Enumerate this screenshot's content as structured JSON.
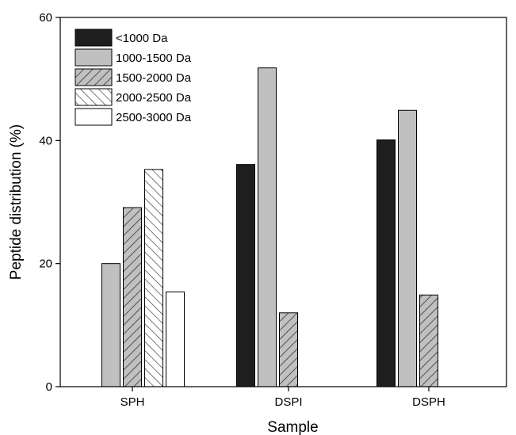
{
  "chart_data": {
    "type": "bar",
    "title": "",
    "xlabel": "Sample",
    "ylabel": "Peptide distribution (%)",
    "ylim": [
      0,
      60
    ],
    "yticks": [
      0,
      20,
      40,
      60
    ],
    "categories": [
      "SPH",
      "DSPI",
      "DSPH"
    ],
    "legend_position": "top-left",
    "grid": false,
    "series": [
      {
        "name": "<1000 Da",
        "values": [
          0,
          36.1,
          40.1
        ],
        "color": "#1e1e1e",
        "pattern": "solid"
      },
      {
        "name": "1000-1500 Da",
        "values": [
          20.0,
          51.8,
          44.9
        ],
        "color": "#c0c0c0",
        "pattern": "solid"
      },
      {
        "name": "1500-2000 Da",
        "values": [
          29.1,
          12.0,
          14.9
        ],
        "color": "#c0c0c0",
        "pattern": "diag-right"
      },
      {
        "name": "2000-2500 Da",
        "values": [
          35.3,
          0,
          0
        ],
        "color": "#ffffff",
        "pattern": "diag-left"
      },
      {
        "name": "2500-3000 Da",
        "values": [
          15.4,
          0,
          0
        ],
        "color": "#ffffff",
        "pattern": "solid"
      }
    ]
  }
}
